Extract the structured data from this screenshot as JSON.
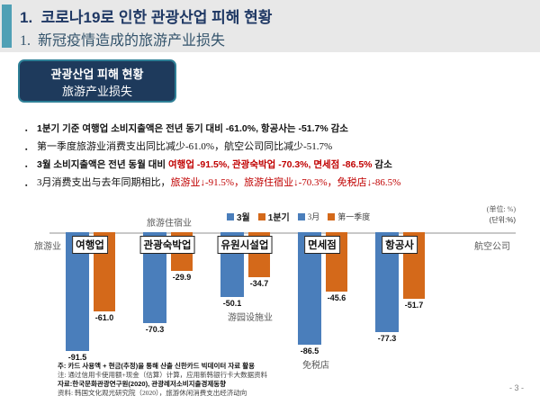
{
  "header": {
    "title_ko": "1.  코로나19로 인한 관광산업 피해 현황",
    "title_zh": "1.  新冠疫情造成的旅游产业损失"
  },
  "badge": {
    "line_ko": "관광산업 피해 현황",
    "line_zh": "旅游产业损失"
  },
  "bullets": [
    {
      "lang": "ko",
      "segments": [
        {
          "text": "1분기 기준 여행업 소비지출액은 전년 동기 대비 -61.0%, 항공사는 -51.7% 감소",
          "red": false
        }
      ]
    },
    {
      "lang": "zh",
      "segments": [
        {
          "text": "第一季度旅游业消费支出同比减少-61.0%，航空公司同比减少-51.7%",
          "red": false
        }
      ]
    },
    {
      "lang": "ko",
      "segments": [
        {
          "text": "3월 소비지출액은 전년 동월 대비 ",
          "red": false
        },
        {
          "text": "여행업 -91.5%, 관광숙박업 -70.3%, 면세점 -86.5%",
          "red": true
        },
        {
          "text": " 감소",
          "red": false
        }
      ]
    },
    {
      "lang": "zh",
      "segments": [
        {
          "text": "3月消费支出与去年同期相比，",
          "red": false
        },
        {
          "text": "旅游业↓-91.5%，旅游住宿业↓-70.3%，免税店↓-86.5%",
          "red": true
        }
      ]
    }
  ],
  "chart_data": {
    "type": "bar",
    "categories": [
      "여행업",
      "관광숙박업",
      "유원시설업",
      "면세점",
      "항공사"
    ],
    "series": [
      {
        "name": "3월 / 3月",
        "color": "#4a7ebb",
        "values": [
          -91.5,
          -70.3,
          -50.1,
          -86.5,
          -77.3
        ]
      },
      {
        "name": "1분기 / 第一季度",
        "color": "#d4691a",
        "values": [
          -61.0,
          -29.9,
          -34.7,
          -45.6,
          -51.7
        ]
      }
    ],
    "legend": [
      {
        "label": "3월",
        "color": "#4a7ebb",
        "lang": "ko"
      },
      {
        "label": "1분기",
        "color": "#d4691a",
        "lang": "ko"
      },
      {
        "label": "3月",
        "color": "#4a7ebb",
        "lang": "zh"
      },
      {
        "label": "第一季度",
        "color": "#d4691a",
        "lang": "zh"
      }
    ],
    "unit_label_zh": "(单位: %)",
    "unit_label_ko": "(단위:%)",
    "side_labels": [
      "旅游业",
      "旅游住宿业",
      "游园设施业",
      "免税店",
      "航空公司"
    ],
    "ylim": [
      -100,
      0
    ],
    "grid": false,
    "legend_position": "top"
  },
  "notes": [
    {
      "lang": "ko",
      "text": "주: 카드 사용액 + 현금(추정)을 통해 산출 신한카드 빅데이터 자료 활용"
    },
    {
      "lang": "zh",
      "text": "注: 通过信用卡使用额+现金（估算）计算，应用新韩银行卡大数据资料"
    },
    {
      "lang": "ko",
      "text": "자료:한국문화관광연구원(2020), 관광레저소비지출경제동향"
    },
    {
      "lang": "zh",
      "text": "资料: 韩国文化观光研究院（2020），旅游休闲消费支出经济动向"
    }
  ],
  "page": {
    "number": "- 3 -"
  }
}
